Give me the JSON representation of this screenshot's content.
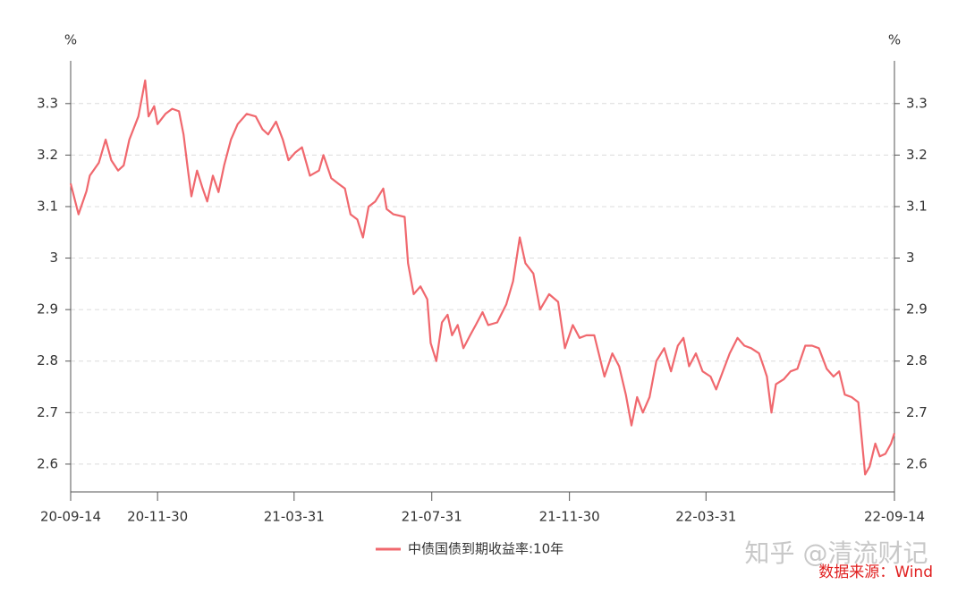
{
  "chart_data": {
    "type": "line",
    "y_unit": "%",
    "x": [
      "2020-09-14",
      "2020-09-21",
      "2020-09-28",
      "2020-10-01",
      "2020-10-09",
      "2020-10-15",
      "2020-10-20",
      "2020-10-26",
      "2020-10-31",
      "2020-11-05",
      "2020-11-13",
      "2020-11-19",
      "2020-11-22",
      "2020-11-27",
      "2020-11-30",
      "2020-12-07",
      "2020-12-13",
      "2020-12-19",
      "2020-12-23",
      "2020-12-27",
      "2020-12-30",
      "2021-01-04",
      "2021-01-09",
      "2021-01-13",
      "2021-01-18",
      "2021-01-23",
      "2021-01-28",
      "2021-02-03",
      "2021-02-09",
      "2021-02-17",
      "2021-02-25",
      "2021-03-03",
      "2021-03-08",
      "2021-03-15",
      "2021-03-21",
      "2021-03-26",
      "2021-04-01",
      "2021-04-07",
      "2021-04-14",
      "2021-04-22",
      "2021-04-26",
      "2021-05-03",
      "2021-05-09",
      "2021-05-15",
      "2021-05-20",
      "2021-05-26",
      "2021-05-31",
      "2021-06-05",
      "2021-06-11",
      "2021-06-18",
      "2021-06-21",
      "2021-06-27",
      "2021-07-07",
      "2021-07-10",
      "2021-07-15",
      "2021-07-21",
      "2021-07-27",
      "2021-07-30",
      "2021-08-04",
      "2021-08-09",
      "2021-08-14",
      "2021-08-18",
      "2021-08-23",
      "2021-08-28",
      "2021-09-03",
      "2021-09-08",
      "2021-09-14",
      "2021-09-19",
      "2021-09-27",
      "2021-10-05",
      "2021-10-11",
      "2021-10-17",
      "2021-10-22",
      "2021-10-29",
      "2021-11-04",
      "2021-11-12",
      "2021-11-20",
      "2021-11-26",
      "2021-12-03",
      "2021-12-09",
      "2021-12-15",
      "2021-12-22",
      "2021-12-26",
      "2021-12-31",
      "2022-01-07",
      "2022-01-13",
      "2022-01-19",
      "2022-01-24",
      "2022-01-29",
      "2022-02-03",
      "2022-02-09",
      "2022-02-15",
      "2022-02-22",
      "2022-02-28",
      "2022-03-06",
      "2022-03-11",
      "2022-03-16",
      "2022-03-22",
      "2022-03-28",
      "2022-04-04",
      "2022-04-09",
      "2022-04-15",
      "2022-04-21",
      "2022-04-28",
      "2022-05-04",
      "2022-05-10",
      "2022-05-17",
      "2022-05-21",
      "2022-05-24",
      "2022-05-28",
      "2022-06-01",
      "2022-06-08",
      "2022-06-14",
      "2022-06-20",
      "2022-06-27",
      "2022-07-03",
      "2022-07-09",
      "2022-07-16",
      "2022-07-22",
      "2022-07-27",
      "2022-08-01",
      "2022-08-07",
      "2022-08-13",
      "2022-08-16",
      "2022-08-19",
      "2022-08-23",
      "2022-08-28",
      "2022-09-01",
      "2022-09-06",
      "2022-09-11",
      "2022-09-14"
    ],
    "series": [
      {
        "name": "中债国债到期收益率:10年",
        "color": "#f0686e",
        "values": [
          3.145,
          3.085,
          3.13,
          3.16,
          3.185,
          3.23,
          3.19,
          3.17,
          3.18,
          3.23,
          3.275,
          3.345,
          3.275,
          3.295,
          3.26,
          3.28,
          3.29,
          3.285,
          3.24,
          3.17,
          3.12,
          3.17,
          3.135,
          3.11,
          3.16,
          3.128,
          3.18,
          3.23,
          3.26,
          3.28,
          3.275,
          3.25,
          3.24,
          3.265,
          3.23,
          3.19,
          3.205,
          3.215,
          3.16,
          3.17,
          3.2,
          3.155,
          3.145,
          3.135,
          3.085,
          3.075,
          3.04,
          3.1,
          3.11,
          3.135,
          3.095,
          3.085,
          3.08,
          2.99,
          2.93,
          2.945,
          2.92,
          2.835,
          2.8,
          2.875,
          2.89,
          2.85,
          2.87,
          2.825,
          2.85,
          2.87,
          2.895,
          2.87,
          2.875,
          2.91,
          2.955,
          3.04,
          2.99,
          2.97,
          2.9,
          2.93,
          2.915,
          2.825,
          2.87,
          2.845,
          2.85,
          2.85,
          2.815,
          2.77,
          2.815,
          2.79,
          2.735,
          2.675,
          2.73,
          2.7,
          2.73,
          2.8,
          2.825,
          2.78,
          2.83,
          2.845,
          2.79,
          2.815,
          2.78,
          2.77,
          2.745,
          2.78,
          2.815,
          2.845,
          2.83,
          2.825,
          2.815,
          2.79,
          2.77,
          2.7,
          2.755,
          2.765,
          2.78,
          2.785,
          2.83,
          2.83,
          2.825,
          2.785,
          2.77,
          2.78,
          2.735,
          2.73,
          2.72,
          2.65,
          2.58,
          2.595,
          2.64,
          2.615,
          2.62,
          2.64,
          2.66
        ]
      }
    ],
    "xlim": [
      "2020-09-14",
      "2022-09-14"
    ],
    "xticks": [
      {
        "value": "2020-09-14",
        "label": "20-09-14"
      },
      {
        "value": "2020-11-30",
        "label": "20-11-30"
      },
      {
        "value": "2021-03-31",
        "label": "21-03-31"
      },
      {
        "value": "2021-07-31",
        "label": "21-07-31"
      },
      {
        "value": "2021-11-30",
        "label": "21-11-30"
      },
      {
        "value": "2022-03-31",
        "label": "22-03-31"
      },
      {
        "value": "2022-09-14",
        "label": "22-09-14"
      }
    ],
    "ylim": [
      2.546,
      3.383
    ],
    "yticks": [
      2.6,
      2.7,
      2.8,
      2.9,
      3,
      3.1,
      3.2,
      3.3
    ],
    "grid": true,
    "legend": "bottom",
    "watermark": "知乎 @清流财记",
    "source": "数据来源：Wind"
  }
}
